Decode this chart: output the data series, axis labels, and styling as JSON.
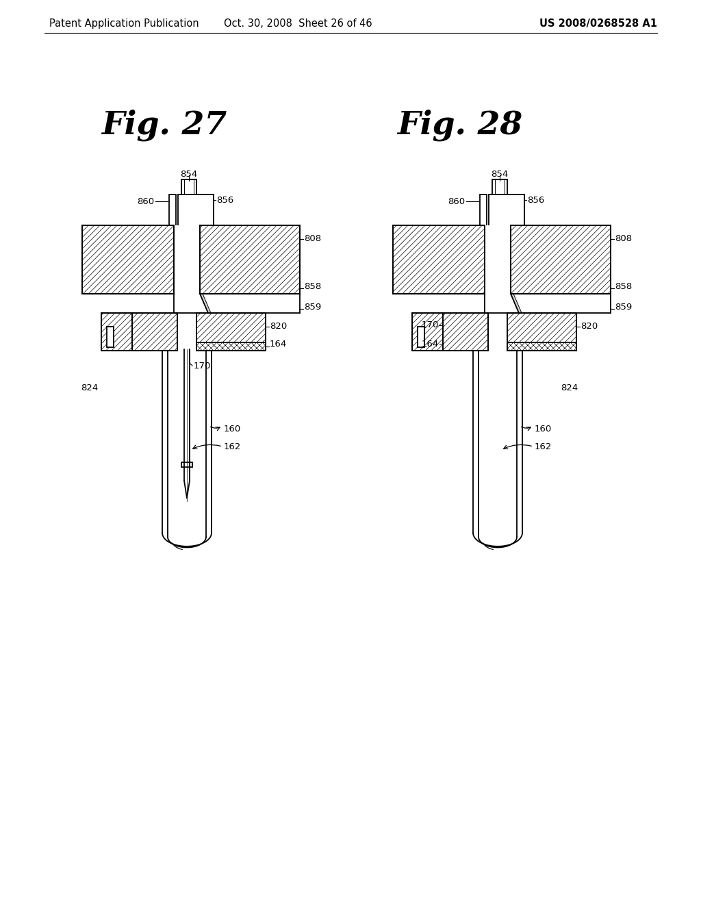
{
  "bg": "#ffffff",
  "lc": "#000000",
  "tc": "#000000",
  "header_left": "Patent Application Publication",
  "header_mid": "Oct. 30, 2008  Sheet 26 of 46",
  "header_right": "US 2008/0268528 A1",
  "fig27_label": "Fig. 27",
  "fig28_label": "Fig. 28",
  "lw": 1.3,
  "hatch_lw": 0.6
}
